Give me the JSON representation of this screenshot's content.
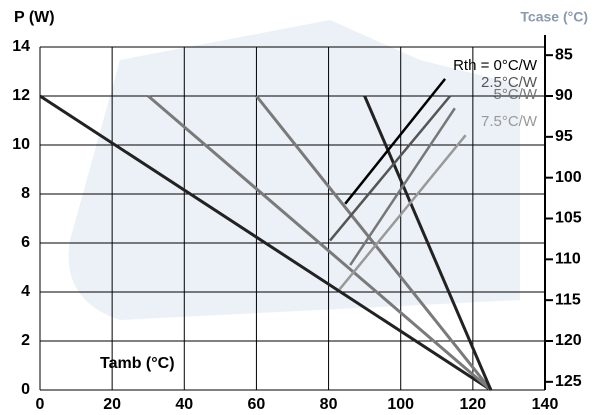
{
  "chart_data": {
    "type": "line",
    "y_label": "P (W)",
    "y2_label": "Tcase (°C)",
    "x_label": "Tamb (°C)",
    "xlim": [
      0,
      140
    ],
    "xticks": [
      0,
      20,
      40,
      60,
      80,
      100,
      120,
      140
    ],
    "ylim": [
      0,
      14
    ],
    "yticks": [
      0,
      2,
      4,
      6,
      8,
      10,
      12,
      14
    ],
    "y2lim": [
      126,
      84
    ],
    "y2ticks": [
      85,
      90,
      95,
      100,
      105,
      110,
      115,
      120,
      125
    ],
    "grid": true,
    "lines": [
      {
        "color": "#222222",
        "x": [
          0,
          125
        ],
        "y": [
          12,
          0
        ]
      },
      {
        "color": "#7a7a7a",
        "x": [
          30,
          125
        ],
        "y": [
          12,
          0
        ]
      },
      {
        "color": "#7a7a7a",
        "x": [
          60,
          125
        ],
        "y": [
          12,
          0
        ]
      },
      {
        "color": "#222222",
        "x": [
          90,
          125
        ],
        "y": [
          12,
          0
        ]
      }
    ],
    "series": [
      {
        "name": "Rth = 0°C/W",
        "color": "#000000",
        "x": [
          84.6,
          112.3
        ],
        "y": [
          7.6,
          12.7
        ]
      },
      {
        "name": "2.5°C/W",
        "color": "#555555",
        "x": [
          80.4,
          113.7
        ],
        "y": [
          6.1,
          12.0
        ]
      },
      {
        "name": "5°C/W",
        "color": "#777777",
        "x": [
          86,
          115
        ],
        "y": [
          5.1,
          11.5
        ]
      },
      {
        "name": "7.5°C/W",
        "color": "#999999",
        "x": [
          83,
          118
        ],
        "y": [
          4.1,
          10.4
        ]
      }
    ]
  }
}
